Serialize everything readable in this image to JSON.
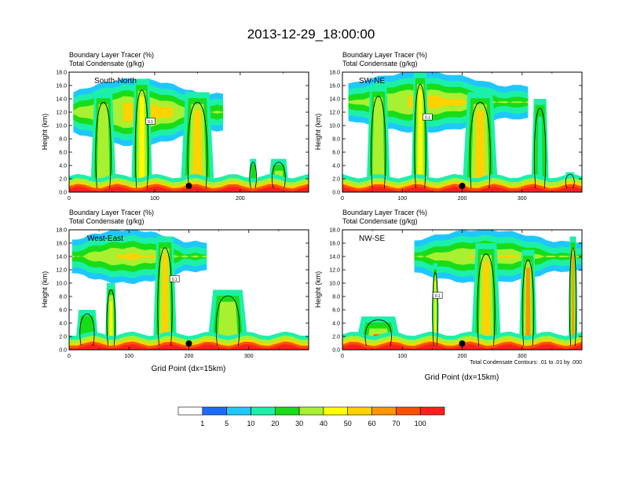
{
  "figure": {
    "title": "2013-12-29_18:00:00",
    "note": "Total Condensate Contours: .01 to .01 by .000"
  },
  "colors": {
    "levels": [
      "#ffffff",
      "#1e6cff",
      "#1ec8ff",
      "#1cf0a8",
      "#18dc18",
      "#a8f030",
      "#ffff00",
      "#ffd200",
      "#ff9600",
      "#ff5000",
      "#ff1e1e"
    ],
    "marker": "#000000",
    "contour": "#000000"
  },
  "colorbar": {
    "labels": [
      "1",
      "5",
      "10",
      "20",
      "30",
      "40",
      "50",
      "60",
      "70",
      "100"
    ]
  },
  "chart_data": [
    {
      "type": "heatmap",
      "title": "Boundary Layer Tracer (%)",
      "subtitle": "Total Condensate (g/kg)",
      "panel_label": "South-North",
      "ylabel": "Height (km)",
      "xlabel": "",
      "xlim": [
        0,
        280
      ],
      "ylim": [
        0,
        18
      ],
      "xticks": [
        "0",
        "100",
        "200"
      ],
      "xtick_values": [
        0,
        100,
        200
      ],
      "minor_x": [
        50,
        150,
        250
      ],
      "yticks": [
        "0.0",
        "2.0",
        "4.0",
        "6.0",
        "8.0",
        "10.0",
        "12.0",
        "14.0",
        "16.0",
        "18.0"
      ],
      "marker_x": 140,
      "contour_label": "0.1",
      "anvil": {
        "x": [
          5,
          180
        ],
        "base": 7,
        "top": 17
      },
      "cells": [
        {
          "x": 40,
          "w": 30,
          "top": 15,
          "val": 30
        },
        {
          "x": 85,
          "w": 25,
          "top": 17,
          "val": 40
        },
        {
          "x": 150,
          "w": 40,
          "top": 15,
          "val": 50
        },
        {
          "x": 215,
          "w": 10,
          "top": 5,
          "val": 20
        },
        {
          "x": 245,
          "w": 25,
          "top": 5,
          "val": 70
        }
      ]
    },
    {
      "type": "heatmap",
      "title": "Boundary Layer Tracer (%)",
      "subtitle": "Total Condensate (g/kg)",
      "panel_label": "SW-NE",
      "ylabel": "Height (km)",
      "xlabel": "",
      "xlim": [
        0,
        400
      ],
      "ylim": [
        0,
        18
      ],
      "xticks": [
        "0",
        "100",
        "200",
        "300"
      ],
      "xtick_values": [
        0,
        100,
        200,
        300
      ],
      "minor_x": [
        50,
        150,
        250,
        350
      ],
      "yticks": [
        "0.0",
        "2.0",
        "4.0",
        "6.0",
        "8.0",
        "10.0",
        "12.0",
        "14.0",
        "16.0",
        "18.0"
      ],
      "marker_x": 200,
      "contour_label": "0.1",
      "anvil": {
        "x": [
          10,
          310
        ],
        "base": 9,
        "top": 18
      },
      "cells": [
        {
          "x": 60,
          "w": 40,
          "top": 16,
          "val": 30
        },
        {
          "x": 130,
          "w": 30,
          "top": 18,
          "val": 40
        },
        {
          "x": 230,
          "w": 60,
          "top": 15,
          "val": 50
        },
        {
          "x": 330,
          "w": 30,
          "top": 14,
          "val": 10
        },
        {
          "x": 380,
          "w": 20,
          "top": 3,
          "val": 20
        }
      ]
    },
    {
      "type": "heatmap",
      "title": "Boundary Layer Tracer (%)",
      "subtitle": "Total Condensate (g/kg)",
      "panel_label": "West-East",
      "ylabel": "Height (km)",
      "xlabel": "Grid Point (dx=15km)",
      "xlim": [
        0,
        400
      ],
      "ylim": [
        0,
        18
      ],
      "xticks": [
        "0",
        "100",
        "200",
        "300"
      ],
      "xtick_values": [
        0,
        100,
        200,
        300
      ],
      "minor_x": [
        50,
        150,
        250,
        350
      ],
      "yticks": [
        "0.0",
        "2.0",
        "4.0",
        "6.0",
        "8.0",
        "10.0",
        "12.0",
        "14.0",
        "16.0",
        "18.0"
      ],
      "marker_x": 200,
      "contour_label": "0.1",
      "anvil": {
        "x": [
          5,
          230
        ],
        "base": 10,
        "top": 18
      },
      "cells": [
        {
          "x": 70,
          "w": 20,
          "top": 10,
          "val": 40
        },
        {
          "x": 160,
          "w": 40,
          "top": 17,
          "val": 50
        },
        {
          "x": 265,
          "w": 70,
          "top": 9,
          "val": 30
        },
        {
          "x": 30,
          "w": 40,
          "top": 6,
          "val": 20
        }
      ]
    },
    {
      "type": "heatmap",
      "title": "Boundary Layer Tracer (%)",
      "subtitle": "Total Condensate (g/kg)",
      "panel_label": "NW-SE",
      "ylabel": "Height (km)",
      "xlabel": "Grid Point (dx=15km)",
      "xlim": [
        0,
        400
      ],
      "ylim": [
        0,
        18
      ],
      "xticks": [
        "0",
        "100",
        "200",
        "300"
      ],
      "xtick_values": [
        0,
        100,
        200,
        300
      ],
      "minor_x": [
        50,
        150,
        250,
        350
      ],
      "yticks": [
        "0.0",
        "2.0",
        "4.0",
        "6.0",
        "8.0",
        "10.0",
        "12.0",
        "14.0",
        "16.0",
        "18.0"
      ],
      "marker_x": 200,
      "contour_label": "0.1",
      "anvil": {
        "x": [
          120,
          400
        ],
        "base": 10,
        "top": 18
      },
      "cells": [
        {
          "x": 60,
          "w": 80,
          "top": 5,
          "val": 70
        },
        {
          "x": 155,
          "w": 10,
          "top": 13,
          "val": 40
        },
        {
          "x": 240,
          "w": 50,
          "top": 16,
          "val": 50
        },
        {
          "x": 310,
          "w": 30,
          "top": 15,
          "val": 60
        },
        {
          "x": 385,
          "w": 15,
          "top": 17,
          "val": 60
        }
      ]
    }
  ]
}
